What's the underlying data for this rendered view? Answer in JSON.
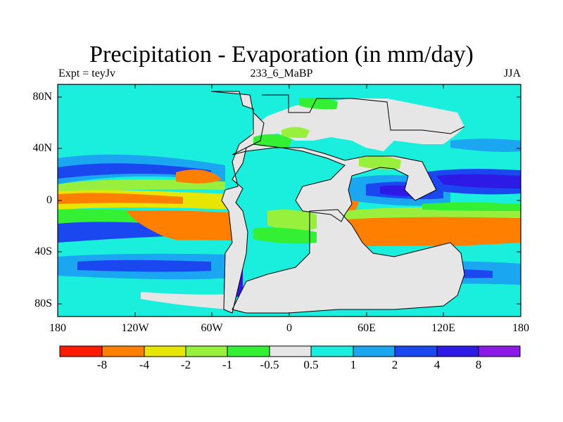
{
  "header": {
    "title": "Precipitation - Evaporation (in mm/day)",
    "left_label": "Expt = teyJv",
    "center_label": "233_6_MaBP",
    "right_label": "JJA"
  },
  "map": {
    "lat_ticks": [
      "80N",
      "40N",
      "0",
      "40S",
      "80S"
    ],
    "lon_ticks": [
      "180",
      "120W",
      "60W",
      "0",
      "60E",
      "120E",
      "180"
    ],
    "land_color": "#e6e6e6"
  },
  "colorbar": {
    "colors": [
      "#ff1a00",
      "#ff8000",
      "#e6e600",
      "#99f03c",
      "#33f033",
      "#e6e6e6",
      "#1aeedd",
      "#1aa6f0",
      "#1a47f0",
      "#2e1ae6",
      "#8c1ae6"
    ],
    "labels": [
      "-8",
      "-4",
      "-2",
      "-1",
      "-0.5",
      "0.5",
      "1",
      "2",
      "4",
      "8"
    ]
  }
}
